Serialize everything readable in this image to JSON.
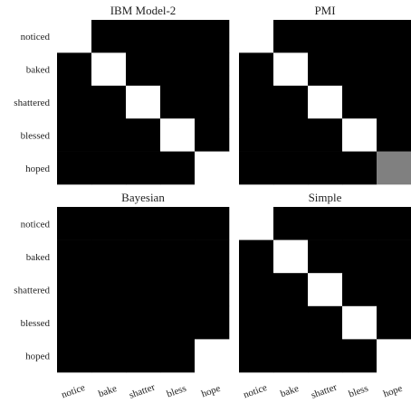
{
  "chart_data": [
    {
      "type": "heatmap",
      "title": "IBM Model-2",
      "row_labels": [
        "noticed",
        "baked",
        "shattered",
        "blessed",
        "hoped"
      ],
      "col_labels": [],
      "colors": {
        "1": "#ffffff",
        "0.5": "#808080",
        "0": "#000000"
      },
      "values": [
        [
          1,
          0,
          0,
          0,
          0
        ],
        [
          0,
          1,
          0,
          0,
          0
        ],
        [
          0,
          0,
          1,
          0,
          0
        ],
        [
          0,
          0,
          0,
          1,
          0
        ],
        [
          0,
          0,
          0,
          0,
          1
        ]
      ]
    },
    {
      "type": "heatmap",
      "title": "PMI",
      "row_labels": [],
      "col_labels": [],
      "colors": {
        "1": "#ffffff",
        "0.5": "#808080",
        "0": "#000000"
      },
      "values": [
        [
          1,
          0,
          0,
          0,
          0
        ],
        [
          0,
          1,
          0,
          0,
          0
        ],
        [
          0,
          0,
          1,
          0,
          0
        ],
        [
          0,
          0,
          0,
          1,
          0
        ],
        [
          0,
          0,
          0,
          0,
          0.5
        ]
      ]
    },
    {
      "type": "heatmap",
      "title": "Bayesian",
      "row_labels": [
        "noticed",
        "baked",
        "shattered",
        "blessed",
        "hoped"
      ],
      "col_labels": [
        "notice",
        "bake",
        "shatter",
        "bless",
        "hope"
      ],
      "colors": {
        "1": "#ffffff",
        "0.5": "#808080",
        "0": "#000000"
      },
      "values": [
        [
          0,
          0,
          0,
          0,
          0
        ],
        [
          0,
          0,
          0,
          0,
          0
        ],
        [
          0,
          0,
          0,
          0,
          0
        ],
        [
          0,
          0,
          0,
          0,
          0
        ],
        [
          0,
          0,
          0,
          0,
          1
        ]
      ]
    },
    {
      "type": "heatmap",
      "title": "Simple",
      "row_labels": [],
      "col_labels": [
        "notice",
        "bake",
        "shatter",
        "bless",
        "hope"
      ],
      "colors": {
        "1": "#ffffff",
        "0.5": "#808080",
        "0": "#000000"
      },
      "values": [
        [
          1,
          0,
          0,
          0,
          0
        ],
        [
          0,
          1,
          0,
          0,
          0
        ],
        [
          0,
          0,
          1,
          0,
          0
        ],
        [
          0,
          0,
          0,
          1,
          0
        ],
        [
          0,
          0,
          0,
          0,
          1
        ]
      ]
    }
  ]
}
